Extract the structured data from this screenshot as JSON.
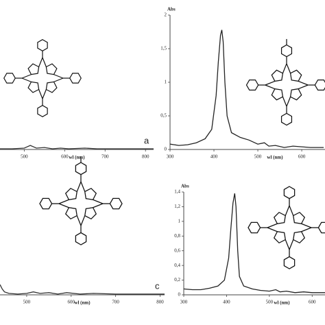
{
  "chart_data": [
    {
      "type": "line",
      "x_label": "wl (nm)",
      "panel_label": "a",
      "x": [
        440,
        470,
        500,
        515,
        530,
        550,
        570,
        590,
        610,
        650,
        680,
        720,
        760,
        800,
        820
      ],
      "values": [
        0.01,
        0.01,
        0.02,
        0.06,
        0.02,
        0.03,
        0.01,
        0.02,
        0.01,
        0.02,
        0.01,
        0.01,
        0.01,
        0.01,
        0.01
      ],
      "color": "#333",
      "xlim": [
        440,
        820
      ],
      "xticks": [
        500,
        600,
        700,
        800
      ],
      "ylim": [
        0,
        2
      ]
    },
    {
      "type": "line",
      "x_label": "wl (nm)",
      "y_label": "Abs",
      "x": [
        300,
        320,
        340,
        360,
        380,
        395,
        405,
        410,
        415,
        418,
        421,
        425,
        430,
        440,
        460,
        480,
        500,
        515,
        525,
        540,
        560,
        580,
        600,
        620,
        650
      ],
      "values": [
        0.08,
        0.06,
        0.07,
        0.1,
        0.16,
        0.3,
        0.8,
        1.3,
        1.7,
        1.78,
        1.6,
        1.0,
        0.5,
        0.25,
        0.18,
        0.14,
        0.08,
        0.1,
        0.05,
        0.06,
        0.03,
        0.05,
        0.04,
        0.03,
        0.03
      ],
      "color": "#222",
      "xlim": [
        300,
        653
      ],
      "xticks": [
        300,
        400,
        500,
        600
      ],
      "ylim": [
        0,
        2
      ],
      "yticks": [
        0,
        {
          "value": 0.5,
          "label": "0,5"
        },
        1,
        {
          "value": 1.5,
          "label": "1,5"
        },
        2
      ]
    },
    {
      "type": "line",
      "x_label": "wl (nm)",
      "panel_label": "c",
      "x": [
        440,
        445,
        450,
        460,
        480,
        500,
        515,
        530,
        550,
        570,
        590,
        620,
        650,
        700,
        750,
        810
      ],
      "values": [
        0.14,
        0.08,
        0.04,
        0.02,
        0.01,
        0.02,
        0.04,
        0.02,
        0.03,
        0.01,
        0.03,
        0.01,
        0.02,
        0.01,
        0.01,
        0.01
      ],
      "color": "#333",
      "xlim": [
        440,
        810
      ],
      "xticks": [
        500,
        600,
        700,
        800
      ],
      "ylim": [
        0,
        1.4
      ]
    },
    {
      "type": "line",
      "x_label": "wl (nm)",
      "y_label": "Abs",
      "x": [
        300,
        320,
        340,
        360,
        380,
        395,
        405,
        410,
        415,
        419,
        422,
        426,
        430,
        440,
        460,
        480,
        500,
        515,
        525,
        540,
        560,
        580,
        600,
        630
      ],
      "values": [
        0.08,
        0.07,
        0.07,
        0.09,
        0.12,
        0.2,
        0.5,
        0.9,
        1.25,
        1.38,
        1.2,
        0.6,
        0.25,
        0.12,
        0.08,
        0.06,
        0.05,
        0.07,
        0.04,
        0.05,
        0.03,
        0.04,
        0.03,
        0.03
      ],
      "color": "#222",
      "xlim": [
        300,
        630
      ],
      "xticks": [
        300,
        400,
        500,
        600
      ],
      "ylim": [
        0,
        1.4
      ],
      "yticks": [
        0,
        {
          "value": 0.2,
          "label": "0,2"
        },
        {
          "value": 0.4,
          "label": "0,4"
        },
        {
          "value": 0.6,
          "label": "0,6"
        },
        {
          "value": 0.8,
          "label": "0,8"
        },
        1,
        {
          "value": 1.2,
          "label": "1,2"
        },
        {
          "value": 1.4,
          "label": "1,4"
        }
      ]
    }
  ]
}
